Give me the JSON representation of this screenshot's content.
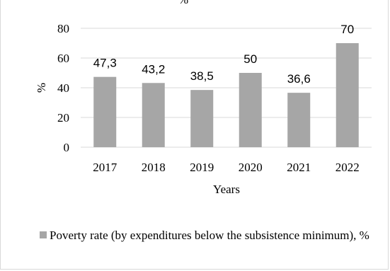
{
  "chart_data": {
    "type": "bar",
    "title": "%",
    "xlabel": "Years",
    "ylabel": "%",
    "categories": [
      "2017",
      "2018",
      "2019",
      "2020",
      "2021",
      "2022"
    ],
    "series": [
      {
        "name": "Poverty rate (by expenditures below the subsistence minimum), %",
        "values": [
          47.3,
          43.2,
          38.5,
          50,
          36.6,
          70
        ],
        "labels": [
          "47,3",
          "43,2",
          "38,5",
          "50",
          "36,6",
          "70"
        ],
        "color": "#a6a6a6"
      }
    ],
    "ylim": [
      0,
      80
    ],
    "yticks": [
      "0",
      "20",
      "40",
      "60",
      "80"
    ],
    "grid": true,
    "legend": "bottom"
  }
}
